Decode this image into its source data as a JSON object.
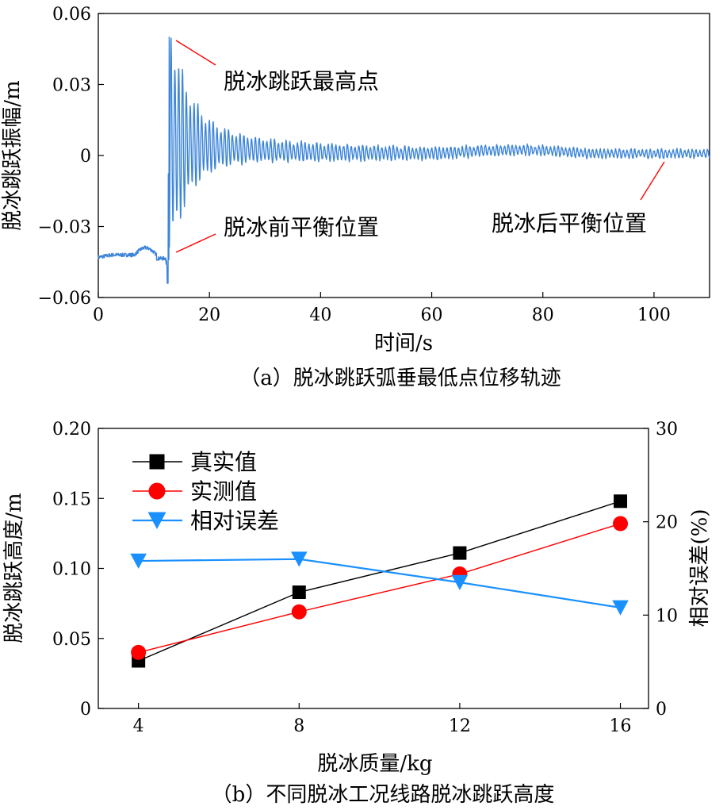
{
  "chart_data": [
    {
      "type": "line",
      "caption": "（a）脱冰跳跃弧垂最低点位移轨迹",
      "xlabel": "时间/s",
      "ylabel": "脱冰跳跃振幅/m",
      "xlim": [
        0,
        110
      ],
      "ylim": [
        -0.06,
        0.06
      ],
      "xticks": [
        "0",
        "20",
        "40",
        "60",
        "80",
        "100"
      ],
      "yticks": [
        "−0.06",
        "−0.03",
        "0",
        "0.03",
        "0.06"
      ],
      "line_color": "#3d85d8",
      "annotations": [
        {
          "text": "脱冰跳跃最高点",
          "x": 12.5,
          "y": 0.05
        },
        {
          "text": "脱冰前平衡位置",
          "x": 12.2,
          "y": -0.042
        },
        {
          "text": "脱冰后平衡位置",
          "x": 104,
          "y": 0.0015
        }
      ],
      "signal": {
        "pre_level": -0.042,
        "release_time": 12.4,
        "peak": 0.05,
        "trough": -0.058,
        "end_time": 110
      }
    },
    {
      "type": "line",
      "caption": "（b）不同脱冰工况线路脱冰跳跃高度",
      "xlabel": "脱冰质量/kg",
      "ylabel": "脱冰跳跃高度/m",
      "y2label": "相对误差(%)",
      "x": [
        4,
        8,
        12,
        16
      ],
      "xlim": [
        3,
        16.7
      ],
      "ylim": [
        0,
        0.2
      ],
      "y2lim": [
        0,
        30
      ],
      "xticks": [
        "4",
        "8",
        "12",
        "16"
      ],
      "yticks": [
        "0",
        "0.05",
        "0.10",
        "0.15",
        "0.20"
      ],
      "y2ticks": [
        "0",
        "10",
        "20",
        "30"
      ],
      "legend_position": "top-left",
      "series": [
        {
          "name": "真实值",
          "values": [
            0.034,
            0.083,
            0.111,
            0.148
          ],
          "color": "#000000",
          "marker": "square",
          "axis": "left"
        },
        {
          "name": "实测值",
          "values": [
            0.04,
            0.069,
            0.096,
            0.132
          ],
          "color": "#ff0000",
          "marker": "circle",
          "axis": "left"
        },
        {
          "name": "相对误差",
          "values": [
            15.8,
            16.0,
            13.5,
            10.8
          ],
          "color": "#1a90ff",
          "marker": "triangle-down",
          "axis": "right"
        }
      ]
    }
  ]
}
